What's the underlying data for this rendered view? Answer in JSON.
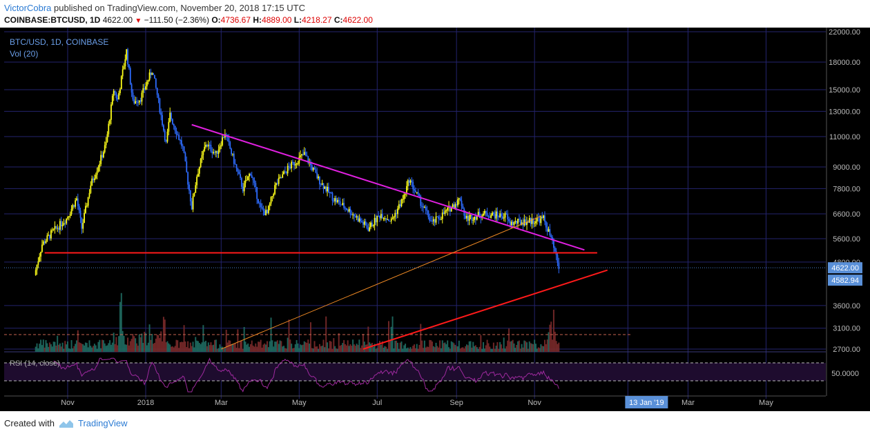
{
  "header": {
    "author": "VictorCobra",
    "published_text": " published on TradingView.com, November 20, 2018 17:15 UTC",
    "symbol": "COINBASE:BTCUSD, 1D",
    "last": "4622.00",
    "change": "−111.50 (−2.36%)",
    "o_label": "O:",
    "o_value": "4736.67",
    "h_label": "H:",
    "h_value": "4889.00",
    "l_label": "L:",
    "l_value": "4218.27",
    "c_label": "C:",
    "c_value": "4622.00"
  },
  "legend": {
    "main": "BTC/USD, 1D, COINBASE",
    "vol": "Vol (20)",
    "rsi": "RSI (14, close)"
  },
  "footer": {
    "created_with": "Created with",
    "brand": "TradingView"
  },
  "chart_data": {
    "type": "candlestick",
    "y_axis_scale": "log",
    "price_ticks": [
      22000,
      18000,
      15000,
      13000,
      11000,
      9000,
      7800,
      6600,
      5600,
      4800,
      3600,
      3100,
      2700
    ],
    "price_tick_labels": [
      "22000.00",
      "18000.00",
      "15000.00",
      "13000.00",
      "11000.00",
      "9000.00",
      "7800.00",
      "6600.00",
      "5600.00",
      "4800.00",
      "3600.00",
      "3100.00",
      "2700.00"
    ],
    "x_tick_labels": [
      "Nov",
      "2018",
      "Mar",
      "May",
      "Jul",
      "Sep",
      "Nov",
      "13 Jan '19",
      "Mar",
      "May"
    ],
    "x_tick_dates": [
      "2017-11-01",
      "2018-01-01",
      "2018-03-01",
      "2018-05-01",
      "2018-07-01",
      "2018-09-01",
      "2018-11-01",
      "2019-01-13",
      "2019-03-01",
      "2019-05-01"
    ],
    "last_price_label": "4622.00",
    "last_price": 4622,
    "second_price_label": "4582.94",
    "second_price": 4582.94,
    "rsi_level_label": "50.0000",
    "price_path": [
      [
        "2017-10-06",
        4400
      ],
      [
        "2017-10-12",
        5400
      ],
      [
        "2017-10-21",
        5900
      ],
      [
        "2017-10-31",
        6400
      ],
      [
        "2017-11-08",
        7300
      ],
      [
        "2017-11-12",
        6000
      ],
      [
        "2017-11-19",
        8000
      ],
      [
        "2017-11-26",
        9300
      ],
      [
        "2017-12-01",
        10500
      ],
      [
        "2017-12-07",
        15000
      ],
      [
        "2017-12-10",
        14000
      ],
      [
        "2017-12-17",
        19400
      ],
      [
        "2017-12-22",
        13800
      ],
      [
        "2017-12-28",
        14200
      ],
      [
        "2018-01-06",
        17100
      ],
      [
        "2018-01-10",
        14500
      ],
      [
        "2018-01-17",
        10500
      ],
      [
        "2018-01-20",
        12700
      ],
      [
        "2018-01-30",
        10200
      ],
      [
        "2018-02-06",
        6900
      ],
      [
        "2018-02-10",
        8500
      ],
      [
        "2018-02-17",
        10500
      ],
      [
        "2018-02-25",
        9800
      ],
      [
        "2018-03-04",
        11300
      ],
      [
        "2018-03-12",
        9100
      ],
      [
        "2018-03-18",
        7800
      ],
      [
        "2018-03-24",
        8700
      ],
      [
        "2018-04-01",
        6800
      ],
      [
        "2018-04-06",
        6600
      ],
      [
        "2018-04-12",
        7900
      ],
      [
        "2018-04-22",
        8900
      ],
      [
        "2018-05-05",
        9800
      ],
      [
        "2018-05-16",
        8300
      ],
      [
        "2018-05-28",
        7300
      ],
      [
        "2018-06-10",
        6700
      ],
      [
        "2018-06-24",
        6000
      ],
      [
        "2018-07-04",
        6600
      ],
      [
        "2018-07-12",
        6300
      ],
      [
        "2018-07-22",
        7400
      ],
      [
        "2018-07-26",
        8300
      ],
      [
        "2018-08-05",
        7000
      ],
      [
        "2018-08-13",
        6200
      ],
      [
        "2018-08-24",
        6700
      ],
      [
        "2018-09-04",
        7300
      ],
      [
        "2018-09-08",
        6400
      ],
      [
        "2018-09-22",
        6600
      ],
      [
        "2018-10-10",
        6500
      ],
      [
        "2018-10-12",
        6200
      ],
      [
        "2018-10-30",
        6300
      ],
      [
        "2018-11-08",
        6400
      ],
      [
        "2018-11-14",
        5600
      ],
      [
        "2018-11-20",
        4622
      ]
    ],
    "lines": [
      {
        "name": "descending-resistance",
        "color": "#e020e0",
        "from": [
          "2018-02-06",
          11900
        ],
        "to": [
          "2018-12-10",
          5200
        ]
      },
      {
        "name": "horizontal-support",
        "color": "#ff1a1a",
        "from": [
          "2017-10-14",
          5100
        ],
        "to": [
          "2018-12-20",
          5100
        ]
      },
      {
        "name": "broken-ascending-support",
        "color": "#f08a24",
        "from": [
          "2018-03-01",
          2700
        ],
        "to": [
          "2018-11-06",
          6500
        ]
      },
      {
        "name": "long-term-ascending-support",
        "color": "#ff1a1a",
        "from": [
          "2018-06-20",
          2700
        ],
        "to": [
          "2018-12-28",
          4550
        ]
      }
    ],
    "colors": {
      "background": "#000000",
      "grid": "#24246e",
      "up_candle": "#ffff1a",
      "down_candle": "#2e6cff",
      "volume_up": "#1f6b62",
      "volume_down": "#7a2a2a",
      "rsi_line": "#a02aa0",
      "axis_label_bg": "#5a90d8"
    }
  }
}
